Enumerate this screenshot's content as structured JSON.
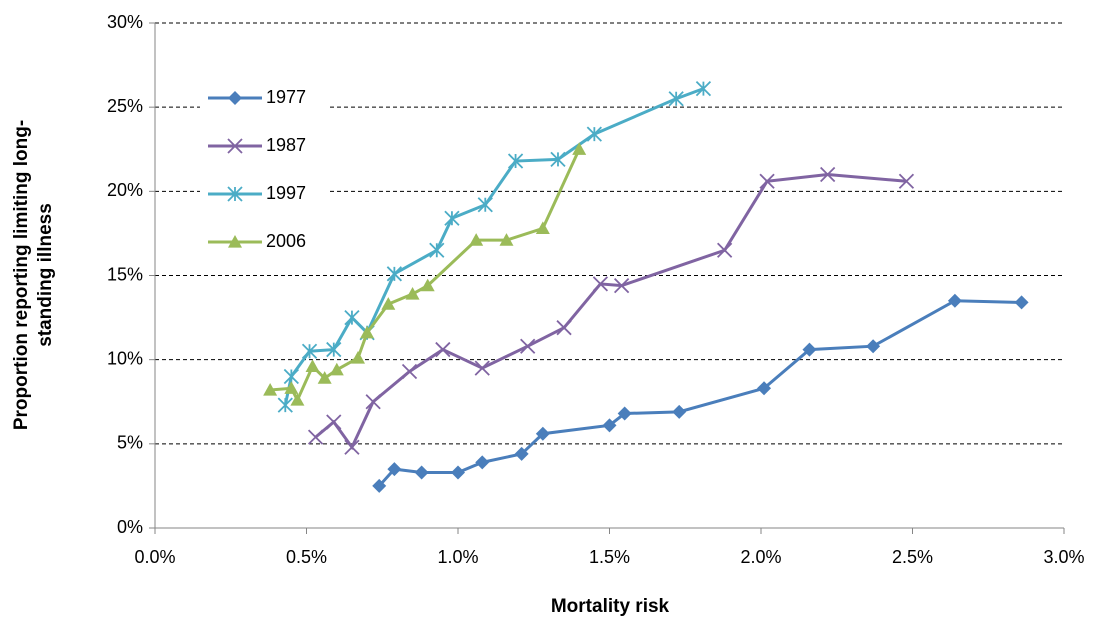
{
  "chart_data": {
    "type": "line",
    "x_label": "Mortality risk",
    "y_label": [
      "Proportion reporting limiting long-",
      "standing illness"
    ],
    "xlim": [
      0,
      3
    ],
    "ylim": [
      0,
      30
    ],
    "xticks": [
      {
        "value": 0,
        "label": "0.0%"
      },
      {
        "value": 0.5,
        "label": "0.5%"
      },
      {
        "value": 1,
        "label": "1.0%"
      },
      {
        "value": 1.5,
        "label": "1.5%"
      },
      {
        "value": 2,
        "label": "2.0%"
      },
      {
        "value": 2.5,
        "label": "2.5%"
      },
      {
        "value": 3,
        "label": "3.0%"
      }
    ],
    "yticks": [
      {
        "value": 0,
        "label": "0%"
      },
      {
        "value": 5,
        "label": "5%"
      },
      {
        "value": 10,
        "label": "10%"
      },
      {
        "value": 15,
        "label": "15%"
      },
      {
        "value": 20,
        "label": "20%"
      },
      {
        "value": 25,
        "label": "25%"
      },
      {
        "value": 30,
        "label": "30%"
      }
    ],
    "grid": true,
    "legend": "top-left",
    "series": [
      {
        "name": "1977",
        "color": "#4a7ebb",
        "marker": "diamond",
        "x": [
          0.74,
          0.79,
          0.88,
          1.0,
          1.08,
          1.21,
          1.28,
          1.5,
          1.55,
          1.73,
          2.01,
          2.16,
          2.37,
          2.64,
          2.86
        ],
        "values": [
          2.5,
          3.5,
          3.3,
          3.3,
          3.9,
          4.4,
          5.6,
          6.1,
          6.8,
          6.9,
          8.3,
          10.6,
          10.8,
          13.5,
          13.4
        ]
      },
      {
        "name": "1987",
        "color": "#8064a2",
        "marker": "cross",
        "x": [
          0.53,
          0.59,
          0.65,
          0.72,
          0.84,
          0.95,
          1.08,
          1.23,
          1.35,
          1.47,
          1.54,
          1.88,
          2.02,
          2.22,
          2.48
        ],
        "values": [
          5.4,
          6.3,
          4.8,
          7.5,
          9.3,
          10.6,
          9.5,
          10.8,
          11.9,
          14.5,
          14.4,
          16.5,
          20.6,
          21.0,
          20.6
        ]
      },
      {
        "name": "1997",
        "color": "#4bacc6",
        "marker": "star",
        "x": [
          0.43,
          0.45,
          0.51,
          0.59,
          0.65,
          0.7,
          0.79,
          0.93,
          0.98,
          1.09,
          1.19,
          1.33,
          1.45,
          1.72,
          1.81
        ],
        "values": [
          7.3,
          9.0,
          10.5,
          10.6,
          12.5,
          11.6,
          15.1,
          16.5,
          18.4,
          19.2,
          21.8,
          21.9,
          23.4,
          25.5,
          26.1
        ]
      },
      {
        "name": "2006",
        "color": "#9bbb59",
        "marker": "triangle",
        "x": [
          0.38,
          0.45,
          0.47,
          0.52,
          0.56,
          0.6,
          0.67,
          0.7,
          0.77,
          0.85,
          0.9,
          1.06,
          1.16,
          1.28,
          1.4
        ],
        "values": [
          8.2,
          8.3,
          7.6,
          9.6,
          8.9,
          9.4,
          10.1,
          11.6,
          13.3,
          13.9,
          14.4,
          17.1,
          17.1,
          17.8,
          22.5
        ]
      }
    ]
  }
}
